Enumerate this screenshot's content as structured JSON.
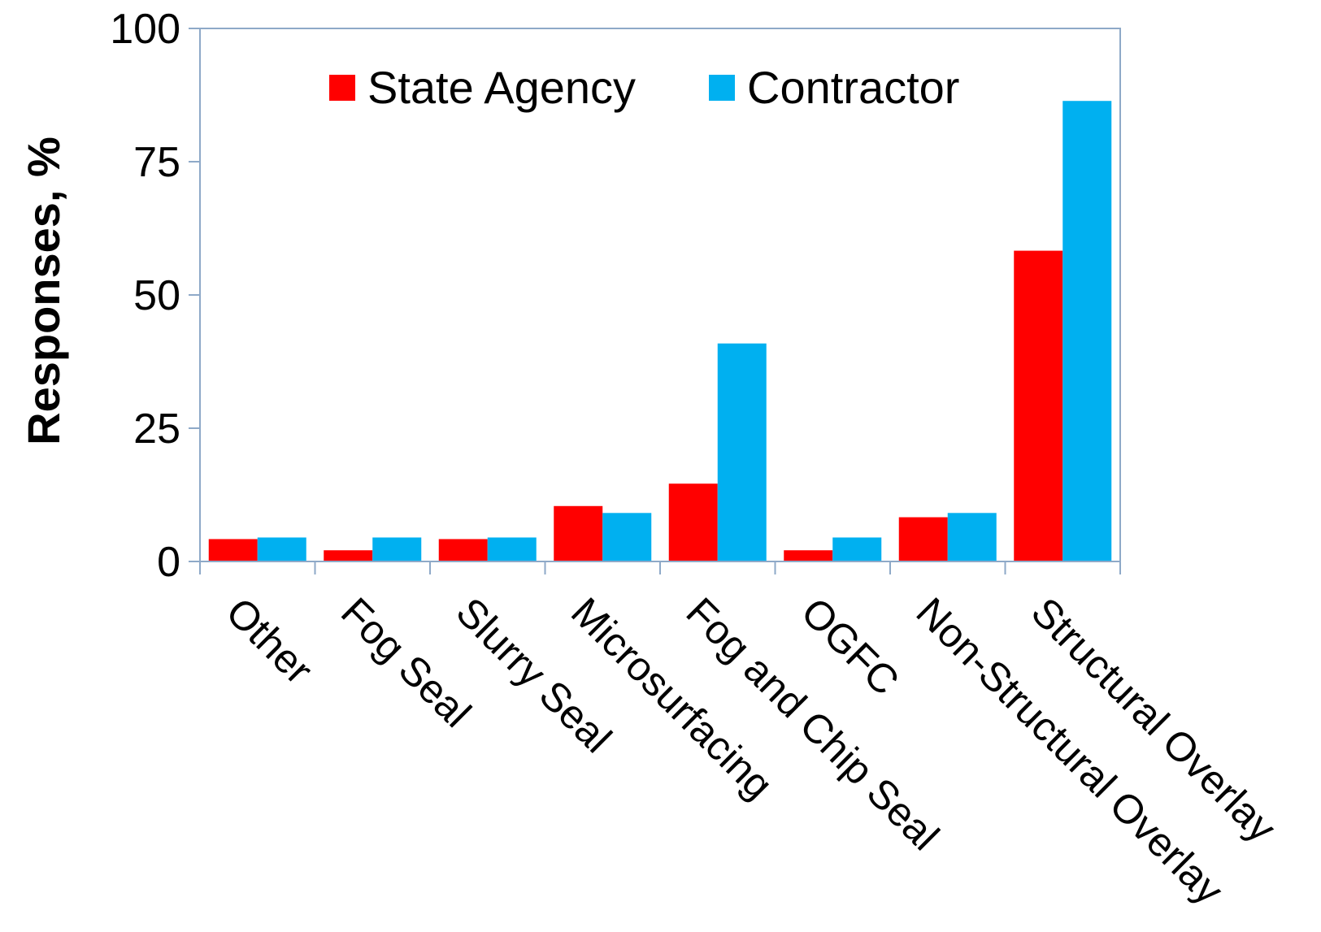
{
  "chart_data": {
    "type": "bar",
    "categories": [
      "Other",
      "Fog Seal",
      "Slurry Seal",
      "Microsurfacing",
      "Fog and Chip Seal",
      "OGFC",
      "Non-Structural Overlay",
      "Structural Overlay"
    ],
    "series": [
      {
        "name": "State Agency",
        "color": "#ff0000",
        "values": [
          4.2,
          2.1,
          4.2,
          10.4,
          14.6,
          2.1,
          8.3,
          58.3
        ]
      },
      {
        "name": "Contractor",
        "color": "#00b0f0",
        "values": [
          4.5,
          4.5,
          4.5,
          9.1,
          40.9,
          4.5,
          9.1,
          86.4
        ]
      }
    ],
    "ylabel": "Responses, %",
    "xlabel": "",
    "ylim": [
      0,
      100
    ],
    "yticks": [
      0,
      25,
      50,
      75,
      100
    ],
    "legend_position": "top-center",
    "grid": false
  }
}
